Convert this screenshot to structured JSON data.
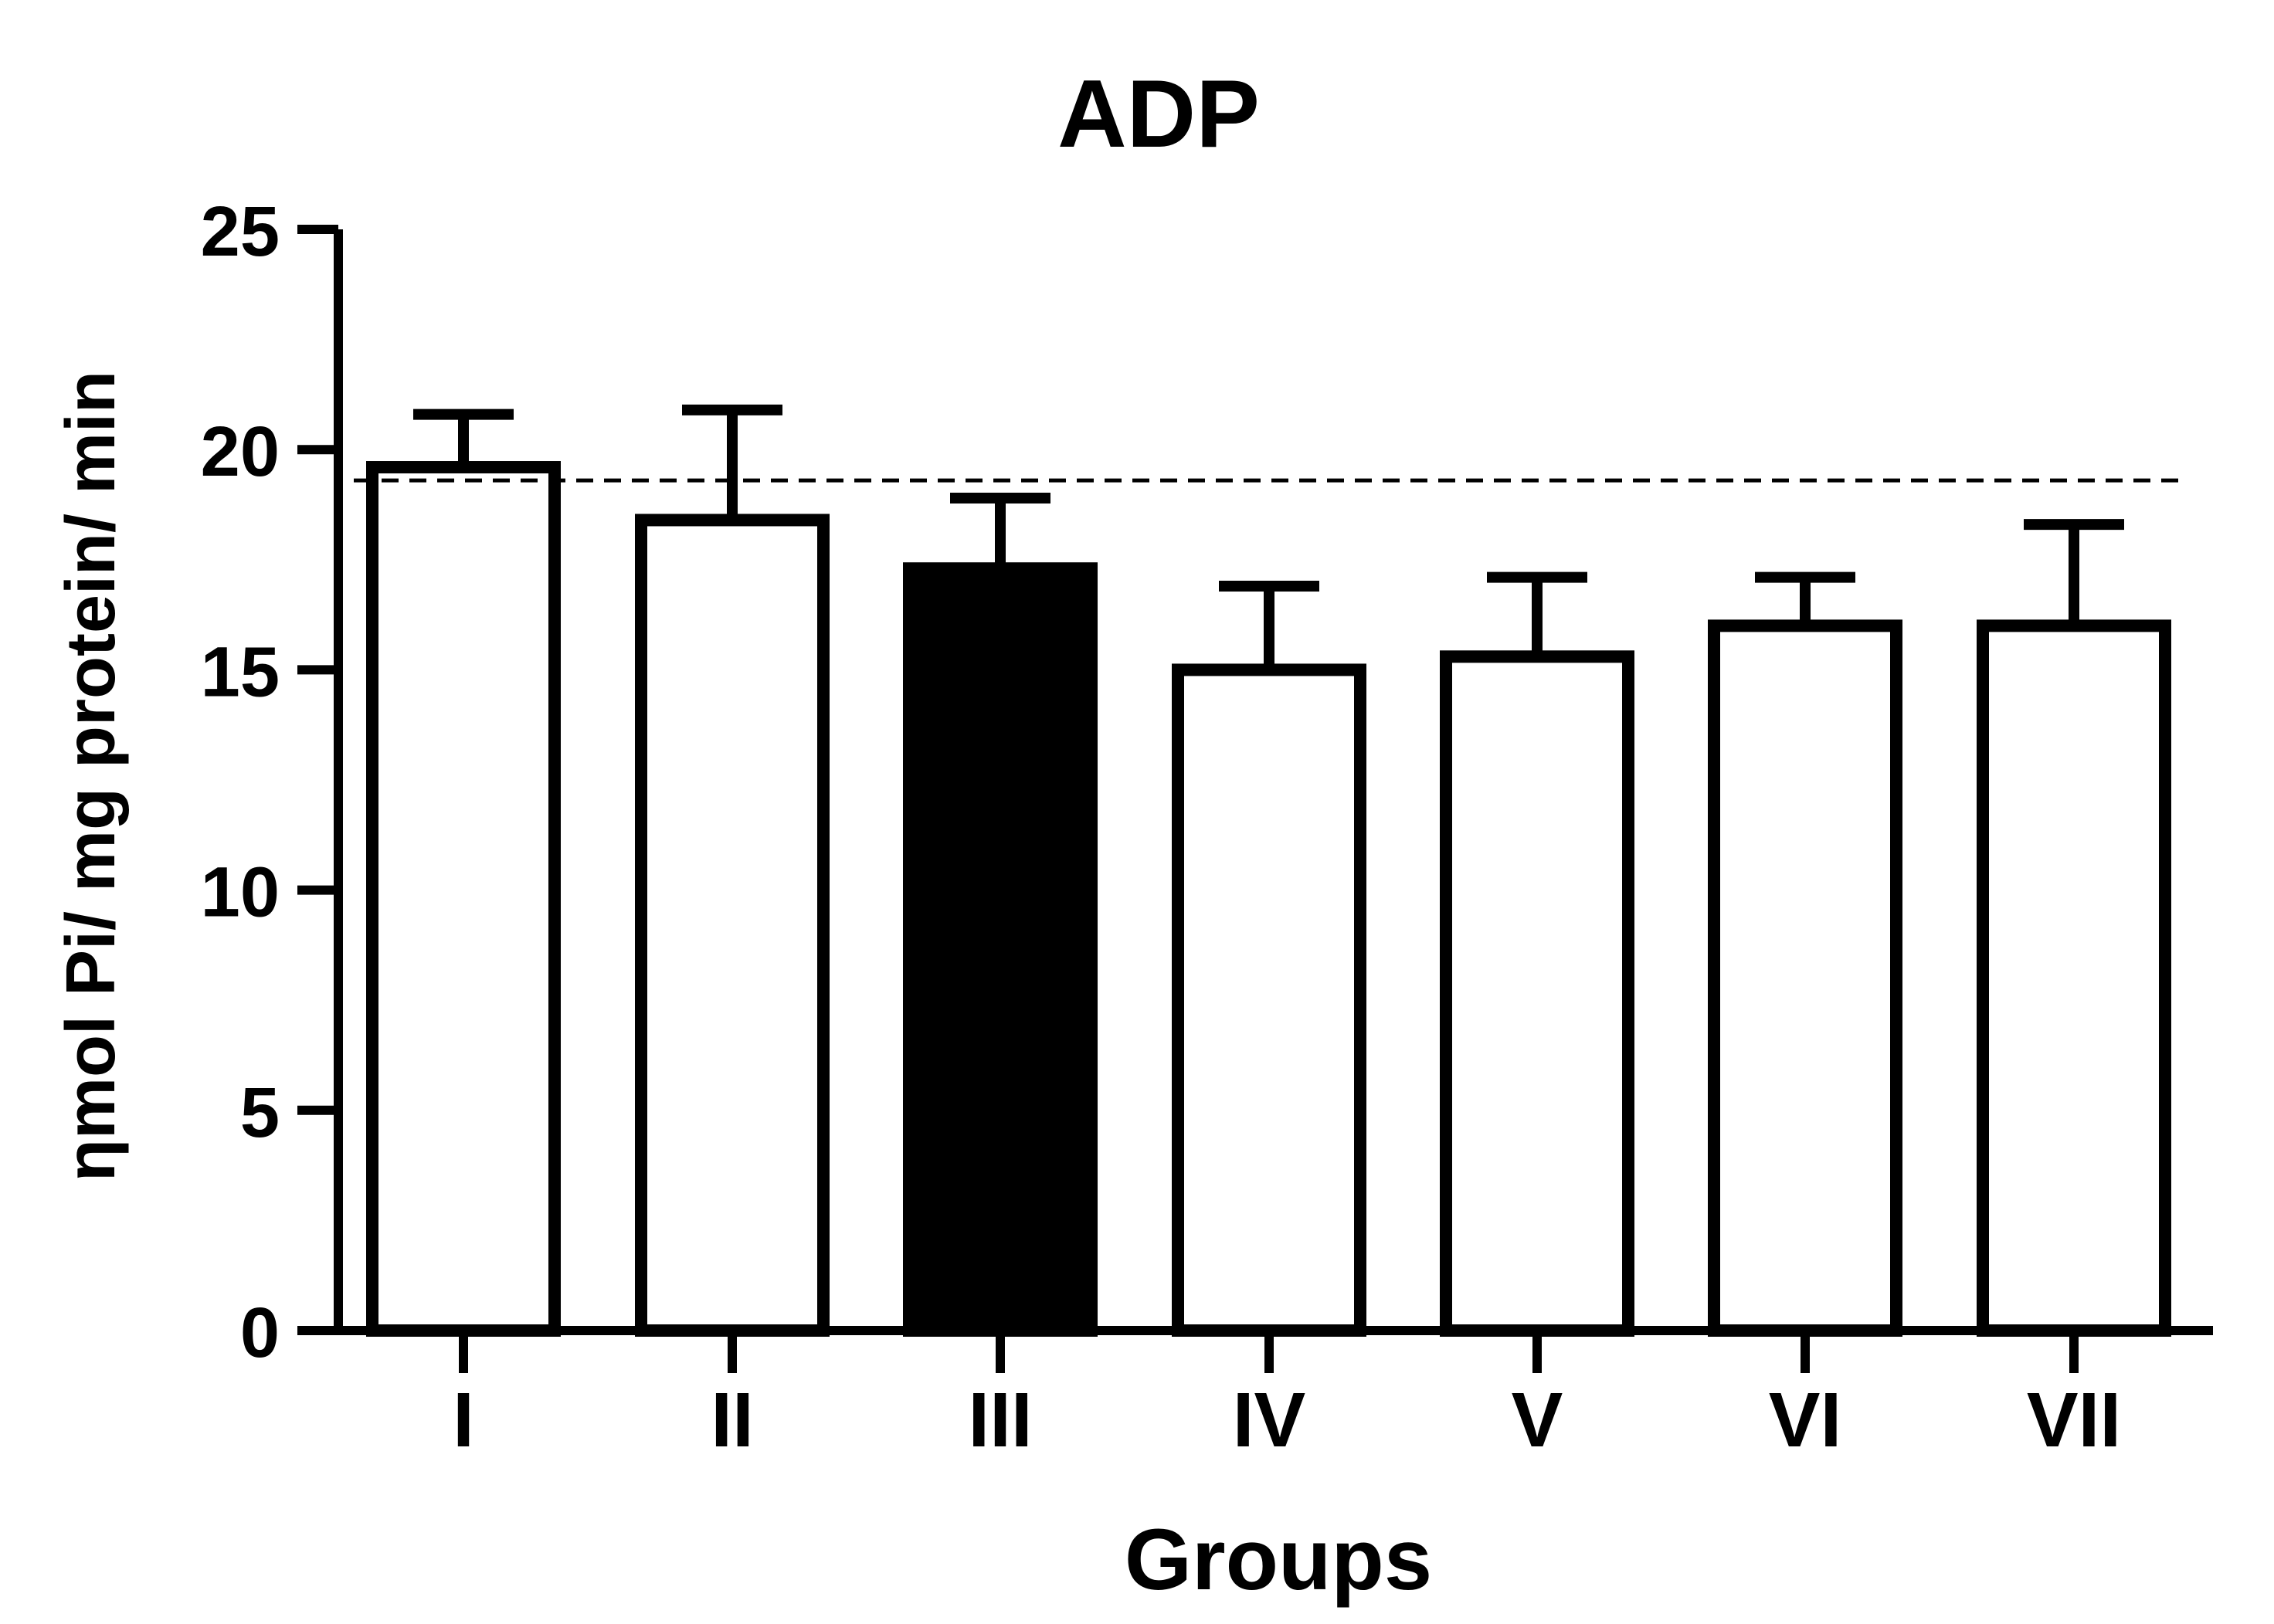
{
  "chart_data": {
    "type": "bar",
    "title": "ADP",
    "xlabel": "Groups",
    "ylabel": "ηmol Pi/ mg protein/ min",
    "ylim": [
      0,
      25
    ],
    "yticks": [
      0,
      5,
      10,
      15,
      20,
      25
    ],
    "categories": [
      "I",
      "II",
      "III",
      "IV",
      "V",
      "VI",
      "VII"
    ],
    "values": [
      19.6,
      18.4,
      17.3,
      15.0,
      15.3,
      16.0,
      16.0
    ],
    "errors": [
      1.2,
      2.5,
      1.6,
      1.9,
      1.8,
      1.1,
      2.3
    ],
    "highlight_index": 2,
    "reference_line": 19.3,
    "grid": false,
    "colors": {
      "bar_fill": "#ffffff",
      "bar_highlight_fill": "#000000",
      "stroke": "#000000"
    }
  }
}
